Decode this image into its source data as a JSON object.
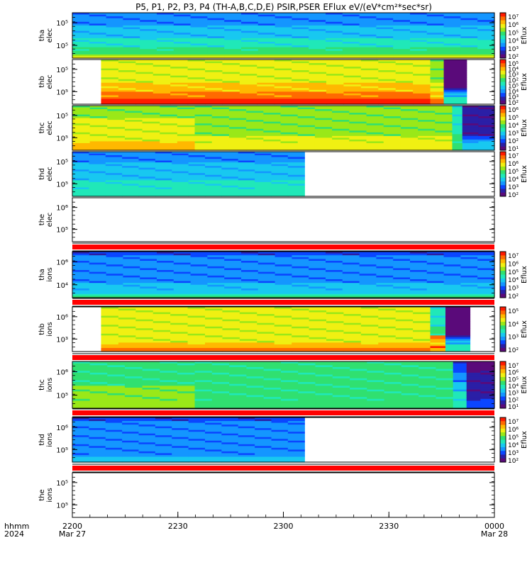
{
  "title": "P5, P1, P2, P3, P4 (TH-A,B,C,D,E) PSIR,PSER EFlux eV/(eV*cm²*sec*sr)",
  "x_label": {
    "line1": "hhmm",
    "line2": "2024"
  },
  "x_ticks": [
    {
      "label": "2200",
      "sub": "Mar 27"
    },
    {
      "label": "2230",
      "sub": ""
    },
    {
      "label": "2300",
      "sub": ""
    },
    {
      "label": "2330",
      "sub": ""
    },
    {
      "label": "0000",
      "sub": "Mar 28"
    }
  ],
  "colorbar_title": "Eflux",
  "colors": {
    "red_band": "#ff0000",
    "frame": "#000000",
    "palette": [
      "#5a0a7a",
      "#2a1fa6",
      "#0b46ff",
      "#1496ff",
      "#18c8f0",
      "#20e8b8",
      "#30e070",
      "#9ae818",
      "#f0f012",
      "#ffb800",
      "#ff6a00",
      "#ff1a00"
    ]
  },
  "chart_data": [
    {
      "type": "heatmap",
      "name": "tha elec",
      "ylabel": [
        "tha",
        "elec"
      ],
      "y_ticks": [
        "10⁵",
        "10⁵"
      ],
      "colorbar": [
        "10⁷",
        "10⁶",
        "10⁵",
        "10⁴",
        "10³",
        "10²"
      ],
      "segments": [
        {
          "t0": 0.0,
          "t1": 1.0,
          "rows": [
            3,
            3,
            3,
            3,
            3,
            3,
            3,
            4,
            4,
            4,
            4,
            4,
            4,
            4,
            5,
            5,
            5,
            5,
            5,
            6,
            6,
            6,
            6,
            7,
            8
          ]
        }
      ]
    },
    {
      "type": "heatmap",
      "name": "thb elec",
      "ylabel": [
        "thb",
        "elec"
      ],
      "y_ticks": [
        "10⁵",
        "10⁵"
      ],
      "colorbar": [
        "10⁵",
        "10⁴",
        "10³",
        "10²",
        "10⁵",
        "10⁴",
        "10³",
        "10²"
      ],
      "segments": [
        {
          "t0": 0.068,
          "t1": 0.848,
          "rows": [
            8,
            8,
            8,
            8,
            8,
            8,
            8,
            8,
            8,
            8,
            8,
            8,
            8,
            9,
            9,
            9,
            9,
            9,
            10,
            10,
            10,
            10,
            11,
            11,
            11
          ]
        },
        {
          "t0": 0.848,
          "t1": 0.88,
          "rows": [
            7,
            7,
            7,
            7,
            7,
            7,
            7,
            7,
            7,
            7,
            7,
            7,
            7,
            8,
            8,
            8,
            8,
            8,
            9,
            9,
            9,
            9,
            10,
            10,
            10
          ]
        },
        {
          "t0": 0.88,
          "t1": 0.934,
          "rows": [
            0,
            0,
            0,
            0,
            0,
            0,
            0,
            0,
            0,
            0,
            0,
            0,
            0,
            0,
            0,
            0,
            1,
            2,
            3,
            4,
            4,
            5,
            5,
            5,
            5
          ]
        }
      ]
    },
    {
      "type": "heatmap",
      "name": "thc elec",
      "ylabel": [
        "thc",
        "elec"
      ],
      "y_ticks": [
        "10⁵",
        "10⁵"
      ],
      "colorbar": [
        "10⁶",
        "10⁵",
        "10⁴",
        "10³",
        "10²",
        "10¹"
      ],
      "segments": [
        {
          "t0": 0.0,
          "t1": 0.29,
          "rows": [
            7,
            7,
            7,
            7,
            7,
            7,
            7,
            8,
            8,
            8,
            8,
            8,
            8,
            8,
            8,
            8,
            8,
            8,
            8,
            8,
            9,
            9,
            9,
            9,
            9
          ]
        },
        {
          "t0": 0.29,
          "t1": 0.9,
          "rows": [
            7,
            7,
            7,
            7,
            7,
            7,
            7,
            7,
            7,
            7,
            7,
            7,
            7,
            7,
            7,
            7,
            7,
            8,
            8,
            8,
            8,
            8,
            8,
            8,
            8
          ]
        },
        {
          "t0": 0.9,
          "t1": 0.924,
          "rows": [
            5,
            5,
            5,
            5,
            5,
            5,
            5,
            5,
            5,
            5,
            5,
            5,
            5,
            5,
            5,
            6,
            6,
            6,
            6,
            6,
            6,
            6,
            6,
            6,
            6
          ]
        },
        {
          "t0": 0.924,
          "t1": 1.0,
          "rows": [
            1,
            1,
            1,
            1,
            1,
            1,
            1,
            1,
            1,
            1,
            1,
            1,
            1,
            1,
            1,
            1,
            1,
            2,
            2,
            3,
            4,
            4,
            4,
            4,
            4
          ]
        }
      ]
    },
    {
      "type": "heatmap",
      "name": "thd elec",
      "ylabel": [
        "thd",
        "elec"
      ],
      "y_ticks": [
        "10⁵",
        "10⁵"
      ],
      "colorbar": [
        "10⁷",
        "10⁶",
        "10⁵",
        "10⁴",
        "10³",
        "10²"
      ],
      "segments": [
        {
          "t0": 0.0,
          "t1": 0.55,
          "rows": [
            3,
            3,
            3,
            3,
            3,
            3,
            4,
            4,
            4,
            4,
            4,
            4,
            4,
            4,
            4,
            4,
            5,
            5,
            5,
            5,
            5,
            5,
            5,
            5,
            5
          ]
        }
      ]
    },
    {
      "type": "heatmap",
      "name": "the elec",
      "ylabel": [
        "the",
        "elec"
      ],
      "y_ticks": [
        "10⁶",
        "10⁵"
      ],
      "colorbar": [],
      "segments": []
    },
    {
      "type": "heatmap",
      "name": "tha ions",
      "ylabel": [
        "tha",
        "ions"
      ],
      "y_ticks": [
        "10⁶",
        "10⁴"
      ],
      "colorbar": [
        "10⁷",
        "10⁶",
        "10⁵",
        "10⁴",
        "10³",
        "10²"
      ],
      "segments": [
        {
          "t0": 0.0,
          "t1": 1.0,
          "rows": [
            2,
            2,
            3,
            3,
            3,
            3,
            3,
            3,
            3,
            3,
            3,
            3,
            3,
            3,
            3,
            3,
            3,
            4,
            4,
            4,
            4,
            4,
            4,
            5,
            6
          ]
        }
      ]
    },
    {
      "type": "heatmap",
      "name": "thb ions",
      "ylabel": [
        "thb",
        "ions"
      ],
      "y_ticks": [
        "10⁶",
        "10³"
      ],
      "colorbar": [
        "10⁵",
        "10⁴",
        "10³",
        "10²"
      ],
      "segments": [
        {
          "t0": 0.068,
          "t1": 0.848,
          "rows": [
            8,
            8,
            8,
            8,
            8,
            8,
            8,
            8,
            8,
            8,
            8,
            8,
            8,
            8,
            8,
            8,
            8,
            8,
            8,
            8,
            9,
            9,
            9,
            10,
            10
          ]
        },
        {
          "t0": 0.848,
          "t1": 0.884,
          "rows": [
            5,
            5,
            5,
            5,
            5,
            5,
            5,
            5,
            5,
            5,
            5,
            6,
            6,
            6,
            6,
            6,
            10,
            10,
            9,
            9,
            9,
            9,
            11,
            9,
            9
          ]
        },
        {
          "t0": 0.884,
          "t1": 0.942,
          "rows": [
            0,
            0,
            0,
            0,
            0,
            0,
            0,
            0,
            0,
            0,
            0,
            0,
            0,
            0,
            0,
            0,
            1,
            2,
            3,
            4,
            4,
            5,
            5,
            5,
            5
          ]
        }
      ]
    },
    {
      "type": "heatmap",
      "name": "thc ions",
      "ylabel": [
        "thc",
        "ions"
      ],
      "y_ticks": [
        "10⁶",
        "10⁵"
      ],
      "colorbar": [
        "10⁷",
        "10⁶",
        "10⁵",
        "10⁴",
        "10³",
        "10²",
        "10¹"
      ],
      "segments": [
        {
          "t0": 0.0,
          "t1": 0.29,
          "rows": [
            6,
            6,
            6,
            6,
            6,
            6,
            6,
            6,
            6,
            6,
            6,
            6,
            6,
            7,
            7,
            7,
            7,
            7,
            7,
            7,
            7,
            7,
            7,
            7,
            7
          ]
        },
        {
          "t0": 0.29,
          "t1": 0.902,
          "rows": [
            6,
            6,
            6,
            6,
            6,
            6,
            6,
            6,
            6,
            6,
            6,
            6,
            6,
            6,
            6,
            6,
            6,
            6,
            6,
            6,
            6,
            6,
            6,
            6,
            6
          ]
        },
        {
          "t0": 0.902,
          "t1": 0.934,
          "rows": [
            2,
            2,
            2,
            2,
            2,
            3,
            3,
            3,
            3,
            3,
            3,
            4,
            4,
            4,
            4,
            4,
            5,
            5,
            5,
            5,
            5,
            5,
            5,
            5,
            5
          ]
        },
        {
          "t0": 0.934,
          "t1": 1.0,
          "rows": [
            0,
            0,
            0,
            0,
            0,
            1,
            1,
            1,
            1,
            1,
            1,
            1,
            1,
            1,
            1,
            1,
            1,
            1,
            1,
            1,
            2,
            2,
            2,
            2,
            2
          ]
        }
      ]
    },
    {
      "type": "heatmap",
      "name": "thd ions",
      "ylabel": [
        "thd",
        "ions"
      ],
      "y_ticks": [
        "10⁶",
        "10⁵"
      ],
      "colorbar": [
        "10⁷",
        "10⁶",
        "10⁵",
        "10⁴",
        "10³",
        "10²"
      ],
      "segments": [
        {
          "t0": 0.0,
          "t1": 0.55,
          "rows": [
            2,
            2,
            3,
            3,
            3,
            3,
            3,
            3,
            3,
            3,
            3,
            3,
            3,
            3,
            3,
            3,
            3,
            3,
            3,
            3,
            3,
            3,
            4,
            4,
            4
          ]
        }
      ]
    },
    {
      "type": "heatmap",
      "name": "the ions",
      "ylabel": [
        "the",
        "ions"
      ],
      "y_ticks": [
        "10⁵",
        "10⁵"
      ],
      "colorbar": [],
      "segments": []
    }
  ]
}
